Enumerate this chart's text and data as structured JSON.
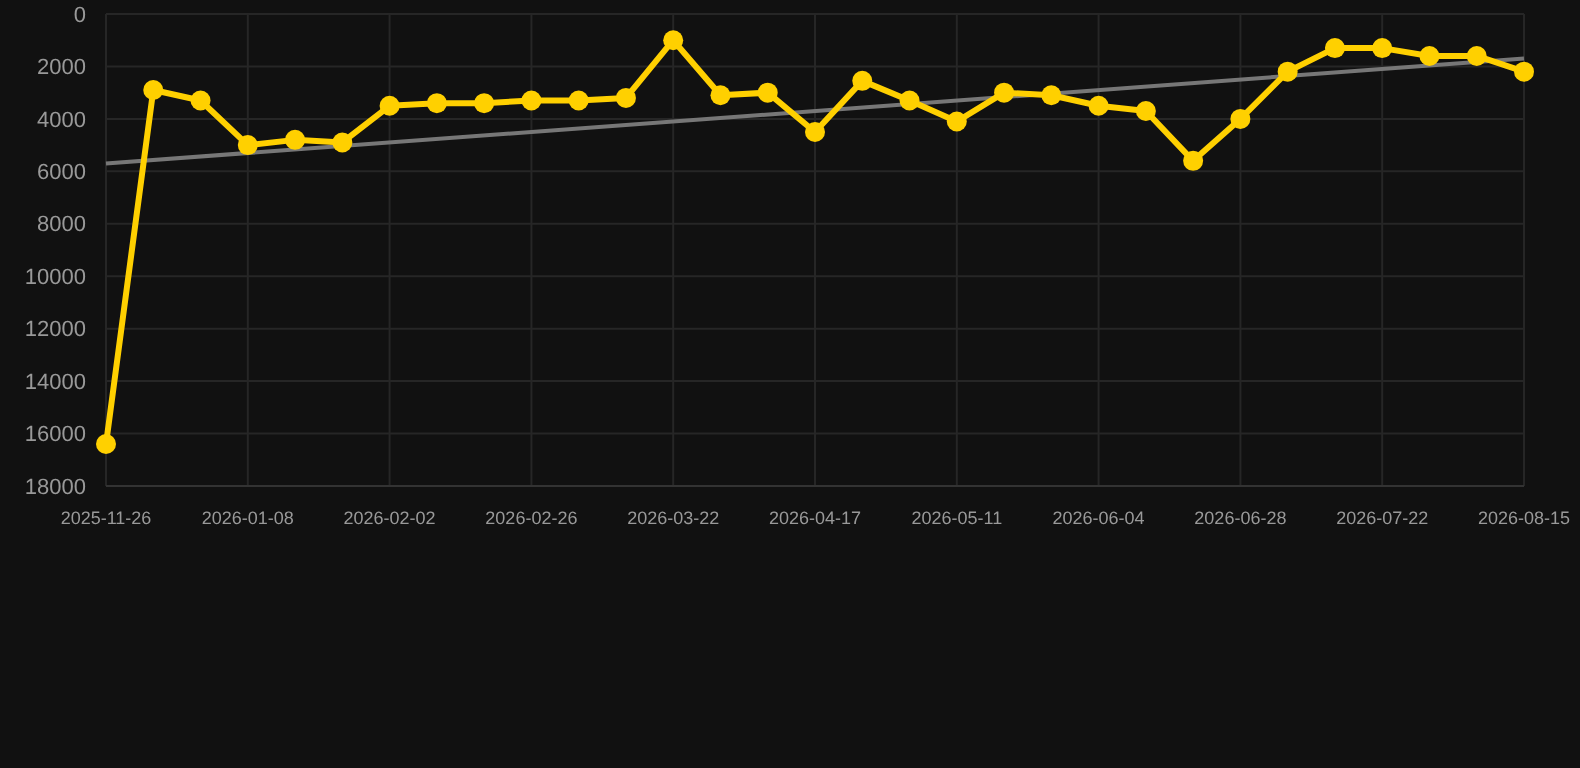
{
  "chart_data": {
    "type": "line",
    "categories": [
      "2025-11-26",
      null,
      null,
      "2026-01-08",
      null,
      null,
      "2026-02-02",
      null,
      null,
      "2026-02-26",
      null,
      null,
      "2026-03-22",
      null,
      null,
      "2026-04-17",
      null,
      null,
      "2026-05-11",
      null,
      null,
      "2026-06-04",
      null,
      null,
      "2026-06-28",
      null,
      null,
      "2026-07-22",
      null,
      null,
      "2026-08-15"
    ],
    "series": [
      {
        "color": "#ffd000",
        "marker": "circle",
        "values": [
          16400,
          2900,
          3300,
          5000,
          4800,
          4900,
          3500,
          3400,
          3400,
          3300,
          3300,
          3200,
          1000,
          3100,
          3000,
          4500,
          2550,
          3300,
          4100,
          3000,
          3100,
          3500,
          3700,
          5600,
          4000,
          2200,
          1300,
          1300,
          1600,
          1600,
          2200
        ]
      },
      {
        "color": "#777777",
        "marker": "none",
        "values": [
          5700,
          null,
          null,
          null,
          null,
          null,
          null,
          null,
          null,
          null,
          null,
          null,
          null,
          null,
          null,
          null,
          null,
          null,
          null,
          null,
          null,
          null,
          null,
          null,
          null,
          null,
          null,
          null,
          null,
          null,
          1700
        ]
      }
    ],
    "ylim": [
      18000,
      0
    ],
    "yticks": [
      0,
      2000,
      4000,
      6000,
      8000,
      10000,
      12000,
      14000,
      16000,
      18000
    ],
    "grid": true
  }
}
